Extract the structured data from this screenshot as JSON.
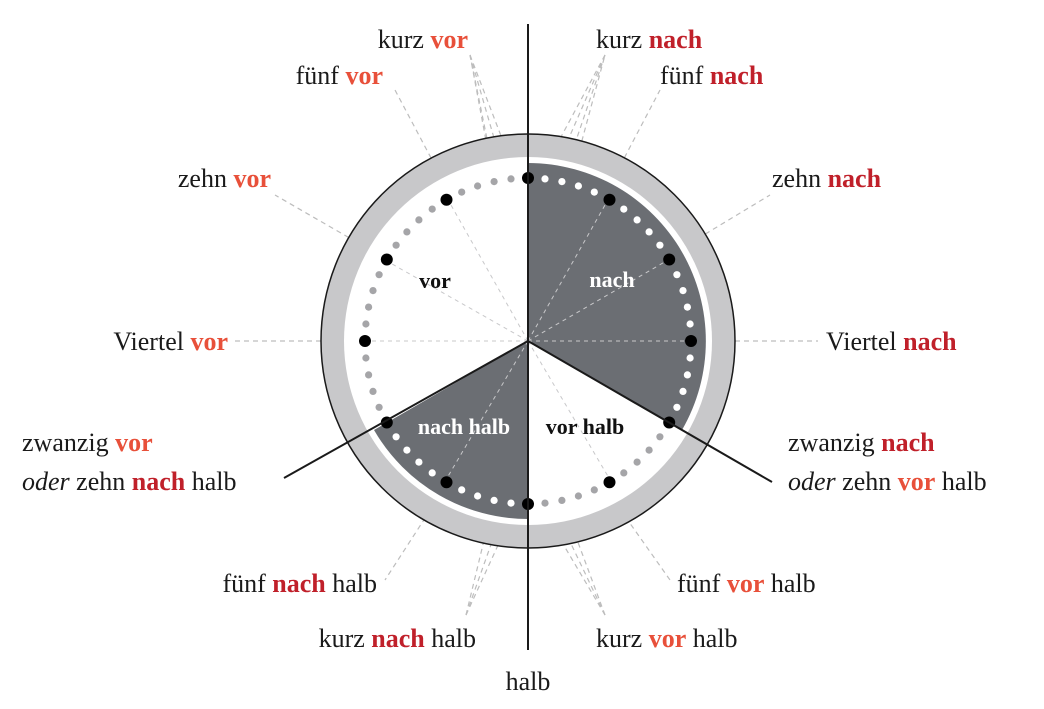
{
  "colors": {
    "vor": "#e8503a",
    "nach": "#c0202a",
    "text": "#1a1a1a",
    "ring": "#c8c8ca",
    "shade": "#6b6e73",
    "guide": "#bdbdbd"
  },
  "sectors": {
    "vor": "vor",
    "nach": "nach",
    "nach_halb": "nach halb",
    "vor_halb": "vor halb"
  },
  "labels": {
    "kurz_vor": {
      "a": "kurz ",
      "b": "vor"
    },
    "fuenf_vor": {
      "a": "fünf ",
      "b": "vor"
    },
    "zehn_vor": {
      "a": "zehn ",
      "b": "vor"
    },
    "viertel_vor": {
      "a": "Viertel ",
      "b": "vor"
    },
    "kurz_nach": {
      "a": "kurz ",
      "b": "nach"
    },
    "fuenf_nach": {
      "a": "fünf ",
      "b": "nach"
    },
    "zehn_nach": {
      "a": "zehn ",
      "b": "nach"
    },
    "viertel_nach": {
      "a": "Viertel ",
      "b": "nach"
    },
    "zwanzig_vor": {
      "l1a": "zwanzig ",
      "l1b": "vor",
      "l2a": "oder",
      "l2b": " zehn ",
      "l2c": "nach",
      "l2d": " halb"
    },
    "zwanzig_nach": {
      "l1a": "zwanzig ",
      "l1b": "nach",
      "l2a": "oder",
      "l2b": " zehn ",
      "l2c": "vor",
      "l2d": " halb"
    },
    "fuenf_nach_halb": {
      "a": "fünf ",
      "b": "nach",
      "c": " halb"
    },
    "kurz_nach_halb": {
      "a": "kurz ",
      "b": "nach",
      "c": " halb"
    },
    "fuenf_vor_halb": {
      "a": "fünf ",
      "b": "vor",
      "c": " halb"
    },
    "kurz_vor_halb": {
      "a": "kurz ",
      "b": "vor",
      "c": " halb"
    },
    "halb": "halb"
  }
}
